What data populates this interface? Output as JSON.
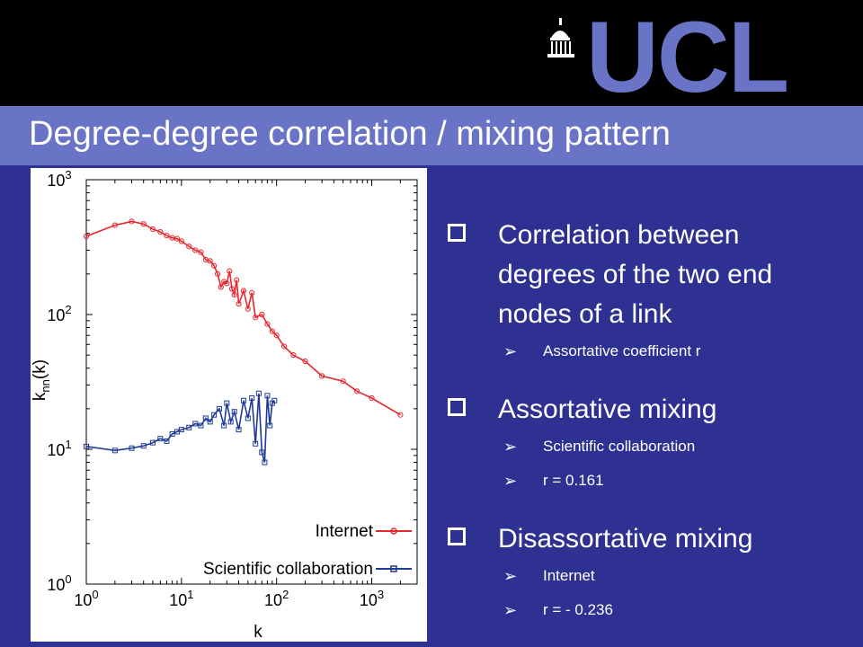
{
  "slide": {
    "title": "Degree-degree correlation / mixing pattern",
    "logo_text": "UCL",
    "bullets": [
      {
        "text": "Correlation between degrees of the two end nodes of a link",
        "subs": [
          "Assortative coefficient r"
        ]
      },
      {
        "text": "Assortative mixing",
        "subs": [
          "Scientific collaboration",
          "r = 0.161"
        ]
      },
      {
        "text": "Disassortative mixing",
        "subs": [
          "Internet",
          "r = - 0.236"
        ]
      }
    ]
  },
  "colors": {
    "background": "#2E3192",
    "title_bar": "#6A74C6",
    "top_bar": "#000000",
    "internet": "#E8262B",
    "collab": "#1F3A93"
  },
  "icons": {
    "bullet": "hollow-square-icon",
    "sub_bullet": "arrow-bullet-icon",
    "logo": "ucl-portico-icon"
  },
  "chart_data": {
    "type": "line",
    "xlabel": "k",
    "ylabel_base": "k",
    "ylabel_sub": "nn",
    "ylabel_tail": "(k)",
    "xscale": "log",
    "yscale": "log",
    "xlim": [
      1,
      3000
    ],
    "ylim": [
      1,
      1000
    ],
    "xticks": [
      {
        "base": "10",
        "exp": "0",
        "value": 1
      },
      {
        "base": "10",
        "exp": "1",
        "value": 10
      },
      {
        "base": "10",
        "exp": "2",
        "value": 100
      },
      {
        "base": "10",
        "exp": "3",
        "value": 1000
      }
    ],
    "yticks": [
      {
        "base": "10",
        "exp": "0",
        "value": 1
      },
      {
        "base": "10",
        "exp": "1",
        "value": 10
      },
      {
        "base": "10",
        "exp": "2",
        "value": 100
      },
      {
        "base": "10",
        "exp": "3",
        "value": 1000
      }
    ],
    "legend_position": "bottom-right",
    "series": [
      {
        "name": "Internet",
        "marker": "circle",
        "x": [
          1,
          2,
          3,
          4,
          5,
          6,
          7,
          8,
          9,
          10,
          12,
          14,
          16,
          18,
          20,
          22,
          24,
          26,
          28,
          30,
          32,
          34,
          36,
          38,
          40,
          45,
          50,
          55,
          60,
          70,
          80,
          90,
          100,
          120,
          150,
          200,
          300,
          500,
          700,
          1000,
          2000
        ],
        "y": [
          380,
          460,
          490,
          470,
          430,
          410,
          385,
          370,
          365,
          350,
          320,
          300,
          290,
          255,
          250,
          230,
          200,
          160,
          175,
          170,
          210,
          155,
          140,
          180,
          120,
          150,
          110,
          145,
          95,
          100,
          85,
          75,
          70,
          58,
          50,
          45,
          35,
          32,
          27,
          24,
          18
        ]
      },
      {
        "name": "Scientific collaboration",
        "marker": "square",
        "x": [
          1,
          2,
          3,
          4,
          5,
          6,
          7,
          8,
          9,
          10,
          12,
          14,
          16,
          18,
          20,
          22,
          25,
          28,
          30,
          33,
          36,
          40,
          45,
          50,
          55,
          60,
          65,
          70,
          75,
          80,
          85,
          90,
          95
        ],
        "y": [
          10.5,
          9.8,
          10.2,
          10.6,
          11.2,
          12,
          11.5,
          13,
          13.5,
          14,
          14.5,
          15.5,
          15,
          17,
          16,
          18,
          20,
          15,
          22,
          16,
          19,
          14,
          23,
          17,
          24,
          11,
          26,
          9.5,
          8,
          25,
          15,
          22,
          23
        ]
      }
    ]
  }
}
